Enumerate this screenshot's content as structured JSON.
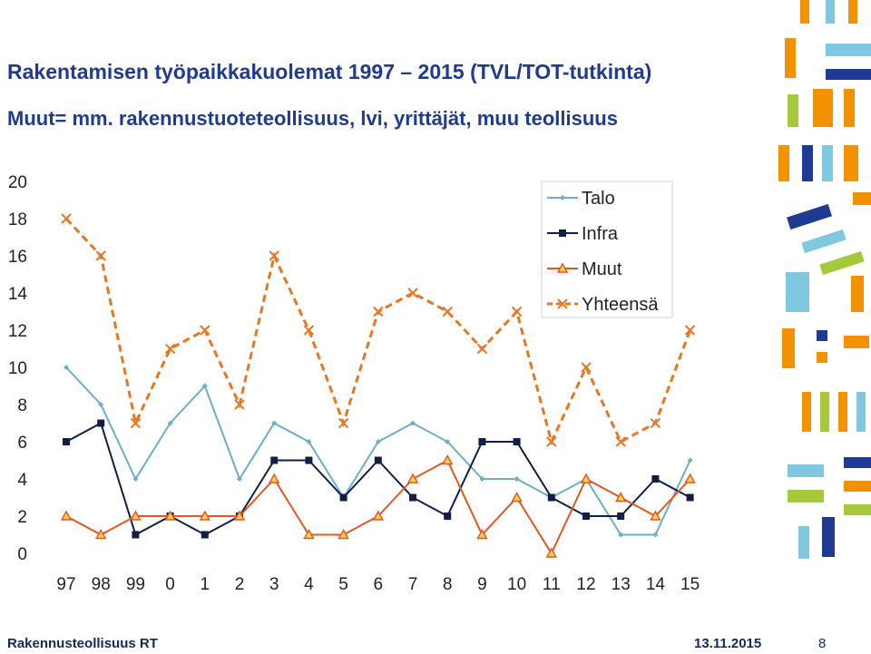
{
  "header": {
    "title": "Rakentamisen työpaikkakuolemat 1997 – 2015 (TVL/TOT-tutkinta)",
    "subtitle": "Muut= mm. rakennustuoteteollisuus, lvi, yrittäjät, muu teollisuus"
  },
  "footer": {
    "org": "Rakennusteollisuus RT",
    "date": "13.11.2015",
    "page": "8"
  },
  "chart_data": {
    "type": "line",
    "categories": [
      "97",
      "98",
      "99",
      "0",
      "1",
      "2",
      "3",
      "4",
      "5",
      "6",
      "7",
      "8",
      "9",
      "10",
      "11",
      "12",
      "13",
      "14",
      "15"
    ],
    "ylim": [
      0,
      20
    ],
    "yticks": [
      0,
      2,
      4,
      6,
      8,
      10,
      12,
      14,
      16,
      18,
      20
    ],
    "grid": false,
    "legend_position": "top-right",
    "series": [
      {
        "name": "Talo",
        "color": "#6aaec9",
        "marker": "diamond",
        "dash": "solid",
        "values": [
          10,
          8,
          4,
          7,
          9,
          4,
          7,
          6,
          3,
          6,
          7,
          6,
          4,
          4,
          3,
          4,
          1,
          1,
          5
        ]
      },
      {
        "name": "Infra",
        "color": "#0f1f4a",
        "marker": "square",
        "dash": "solid",
        "values": [
          6,
          7,
          1,
          2,
          1,
          2,
          5,
          5,
          3,
          5,
          3,
          2,
          6,
          6,
          3,
          2,
          2,
          4,
          3
        ]
      },
      {
        "name": "Muut",
        "color": "#e8541e",
        "marker": "triangle",
        "dash": "solid",
        "values": [
          2,
          1,
          2,
          2,
          2,
          2,
          4,
          1,
          1,
          2,
          4,
          5,
          1,
          3,
          0,
          4,
          3,
          2,
          4
        ]
      },
      {
        "name": "Yhteensä",
        "color": "#e87722",
        "marker": "x",
        "dash": "dashed",
        "values": [
          18,
          16,
          7,
          11,
          12,
          8,
          16,
          12,
          7,
          13,
          14,
          13,
          11,
          13,
          6,
          10,
          6,
          7,
          12
        ]
      }
    ]
  }
}
